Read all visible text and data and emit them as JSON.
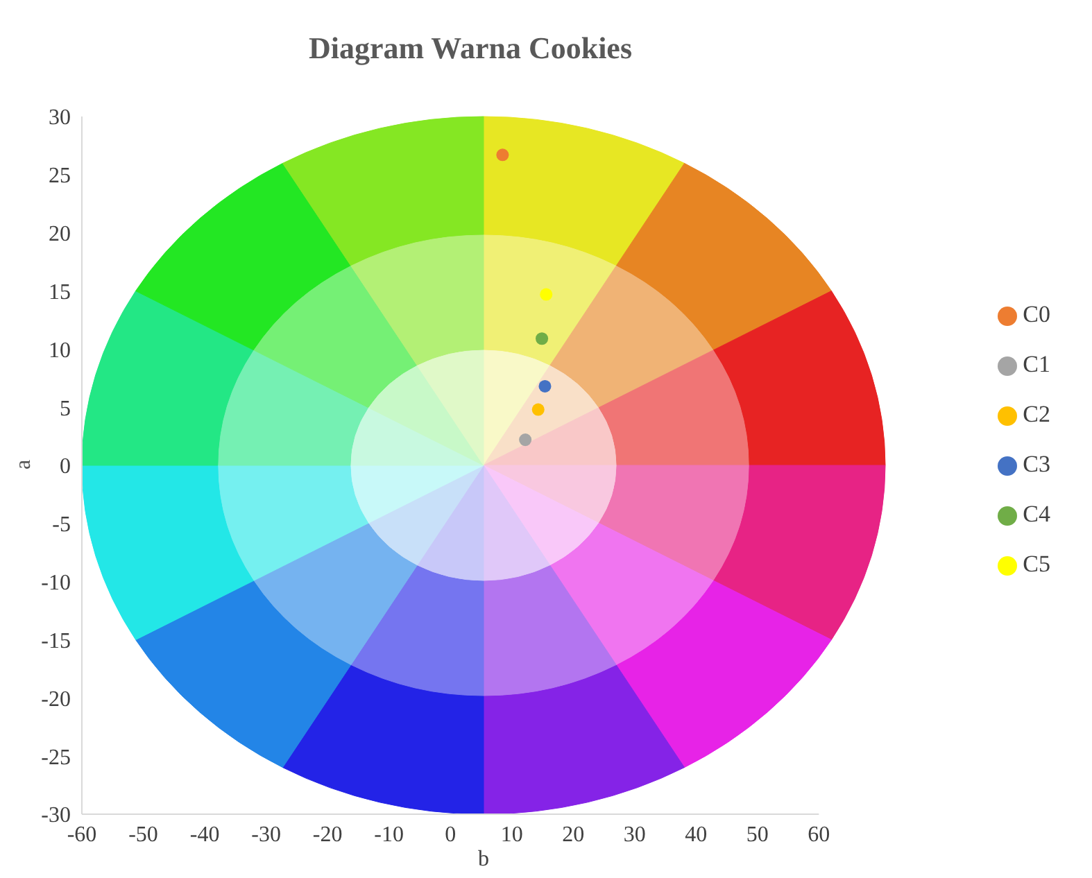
{
  "chart_data": {
    "type": "scatter",
    "title": "Diagram Warna  Cookies",
    "xlabel": "b",
    "ylabel": "a",
    "xlim": [
      -60,
      60
    ],
    "xticks": [
      -60,
      -50,
      -40,
      -30,
      -20,
      -10,
      0,
      10,
      20,
      30,
      40,
      50,
      60
    ],
    "ylim": [
      -30,
      30
    ],
    "yticks": [
      -30,
      -25,
      -20,
      -15,
      -10,
      -5,
      0,
      5,
      10,
      15,
      20,
      25,
      30
    ],
    "grid": false,
    "legend": "right",
    "marker": "circle",
    "series": [
      {
        "name": "C0",
        "color": "#ed7d31",
        "x": [
          8.5
        ],
        "values": [
          26.7
        ]
      },
      {
        "name": "C1",
        "color": "#a5a5a5",
        "x": [
          12.2
        ],
        "values": [
          2.2
        ]
      },
      {
        "name": "C2",
        "color": "#ffc000",
        "x": [
          14.3
        ],
        "values": [
          4.8
        ]
      },
      {
        "name": "C3",
        "color": "#4472c4",
        "x": [
          15.4
        ],
        "values": [
          6.8
        ]
      },
      {
        "name": "C4",
        "color": "#70ad47",
        "x": [
          14.9
        ],
        "values": [
          10.9
        ]
      },
      {
        "name": "C5",
        "color": "#ffff00",
        "x": [
          15.6
        ],
        "values": [
          14.7
        ]
      }
    ]
  }
}
